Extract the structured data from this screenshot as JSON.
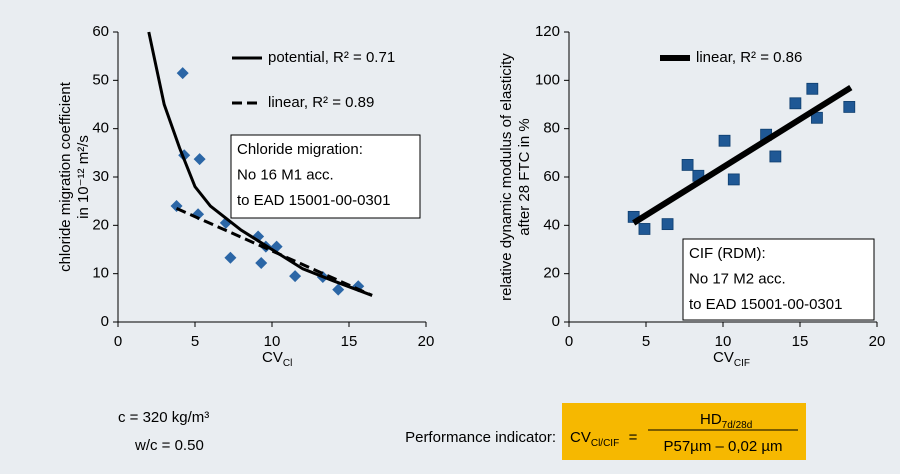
{
  "chart_data": [
    {
      "type": "scatter",
      "ylabel": [
        "chloride migration coefficient",
        "in 10⁻¹² m²/s"
      ],
      "xlabel": "CV",
      "xlabel_sub": "Cl",
      "xlim": [
        0,
        20
      ],
      "xticks": [
        0,
        5,
        10,
        15,
        20
      ],
      "ylim": [
        0,
        60
      ],
      "yticks": [
        0,
        10,
        20,
        30,
        40,
        50,
        60
      ],
      "legend": "upper right",
      "series": [
        {
          "type": "scatter",
          "marker": "diamond",
          "color": "#2b66a6",
          "x": [
            4.2,
            4.3,
            5.3,
            3.8,
            5.2,
            7,
            7.3,
            9.1,
            9.3,
            9.6,
            10.3,
            11.5,
            13.3,
            14.3,
            15.6
          ],
          "values": [
            51.5,
            34.5,
            33.7,
            24,
            22.3,
            20.5,
            13.3,
            17.7,
            12.2,
            15.6,
            15.6,
            9.5,
            9.3,
            6.7,
            7.4
          ]
        },
        {
          "type": "line",
          "name": "potential, R² = 0.71",
          "color": "#000000",
          "dash": false,
          "width": 3,
          "x": [
            2,
            3,
            4,
            5,
            6,
            8,
            10,
            12,
            14,
            16.5
          ],
          "values": [
            60,
            45,
            36,
            28,
            24,
            19,
            15,
            11,
            8.5,
            5.5
          ]
        },
        {
          "type": "line",
          "name": "linear, R² = 0.89",
          "color": "#000000",
          "dash": true,
          "width": 3,
          "x": [
            3.8,
            16.5
          ],
          "values": [
            23.5,
            5.5
          ]
        }
      ],
      "annotation": [
        "Chloride migration:",
        "No 16 M1 acc.",
        "to EAD 15001-00-0301"
      ]
    },
    {
      "type": "scatter",
      "ylabel": [
        "relative dynamic modulus of elasticity",
        "after 28 FTC in %"
      ],
      "xlabel": "CV",
      "xlabel_sub": "CIF",
      "xlim": [
        0,
        20
      ],
      "xticks": [
        0,
        5,
        10,
        15,
        20
      ],
      "ylim": [
        0,
        120
      ],
      "yticks": [
        0,
        20,
        40,
        60,
        80,
        100,
        120
      ],
      "legend": "upper right",
      "series": [
        {
          "type": "scatter",
          "marker": "square",
          "color": "#1f5895",
          "x": [
            4.2,
            4.9,
            6.4,
            7.7,
            8.4,
            10.1,
            10.7,
            12.8,
            13.4,
            14.7,
            15.8,
            16.1,
            18.2
          ],
          "values": [
            43.5,
            38.5,
            40.5,
            65,
            60.5,
            75,
            59,
            77.5,
            68.5,
            90.5,
            96.5,
            84.5,
            89
          ]
        },
        {
          "type": "line",
          "name": "linear, R² = 0.86",
          "color": "#000000",
          "dash": false,
          "width": 6,
          "x": [
            4.2,
            18.3
          ],
          "values": [
            41,
            97
          ]
        }
      ],
      "annotation": [
        "CIF (RDM):",
        "No 17 M2 acc.",
        "to EAD 15001-00-0301"
      ]
    }
  ],
  "notes": {
    "mix": [
      "c = 320 kg/m³",
      "w/c = 0.50"
    ],
    "indicator_label": "Performance indicator:",
    "formula": {
      "lhs": "CV",
      "lhs_sub": "Cl/CIF",
      "equals": "=",
      "numerator": "HD",
      "numerator_sub": "7d/28d",
      "denominator": "P57µm – 0,02 µm"
    }
  }
}
